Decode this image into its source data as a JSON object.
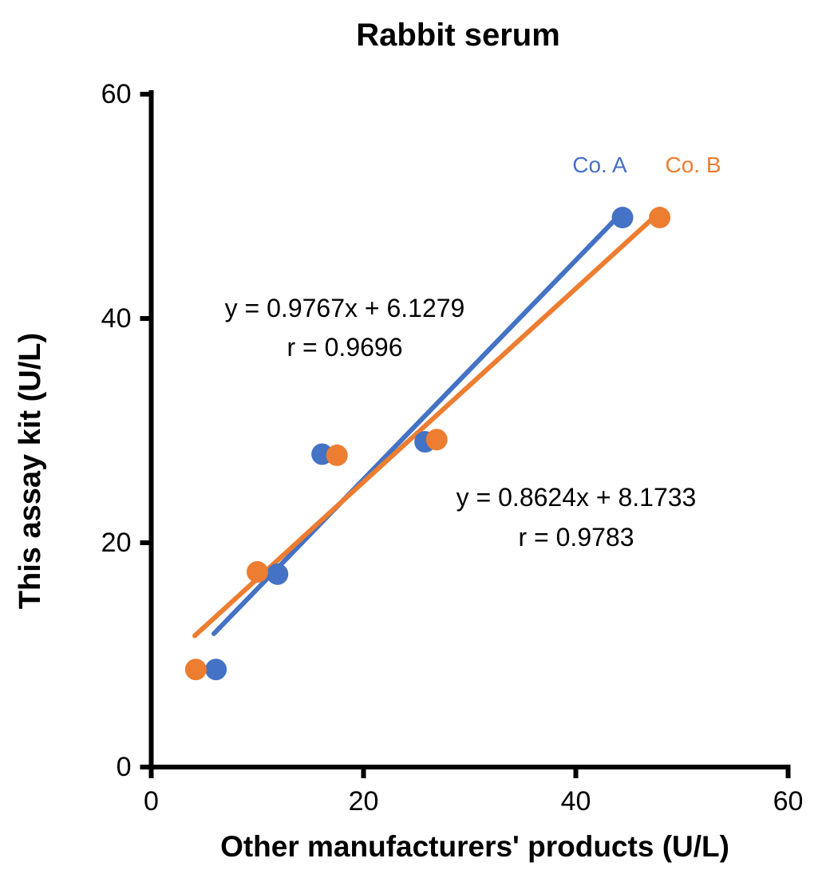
{
  "figure": {
    "title": "Rabbit serum",
    "background": "#ffffff"
  },
  "axes": {
    "x_label": "Other manufacturers' products (U/L)",
    "y_label": "This assay kit (U/L)"
  },
  "legend": {
    "series_a_label": "Co. A",
    "series_b_label": "Co. B"
  },
  "annotations": {
    "series_a": {
      "equation": "y = 0.9767x + 6.1279",
      "r": "r = 0.9696"
    },
    "series_b": {
      "equation": "y = 0.8624x + 8.1733",
      "r": "r = 0.9783"
    }
  },
  "colors": {
    "series_a": "#4472C4",
    "series_b": "#ED7D31",
    "axis": "#000000",
    "text": "#000000"
  },
  "chart_data": {
    "type": "scatter",
    "title": "Rabbit serum",
    "xlabel": "Other manufacturers' products (U/L)",
    "ylabel": "This assay kit (U/L)",
    "xlim": [
      0,
      60
    ],
    "ylim": [
      0,
      60
    ],
    "x_ticks": [
      0,
      20,
      40,
      60
    ],
    "y_ticks": [
      0,
      20,
      40,
      60
    ],
    "grid": false,
    "legend_position": "inside top-right",
    "series": [
      {
        "name": "Co. A",
        "color": "#4472C4",
        "points": [
          [
            6.1,
            8.7
          ],
          [
            11.9,
            17.2
          ],
          [
            16.1,
            27.9
          ],
          [
            25.8,
            29.0
          ],
          [
            44.4,
            49.0
          ]
        ],
        "trendline": {
          "slope": 0.9767,
          "intercept": 6.1279,
          "r": 0.9696,
          "x_range": [
            5.9,
            44.4
          ]
        }
      },
      {
        "name": "Co. B",
        "color": "#ED7D31",
        "points": [
          [
            4.2,
            8.7
          ],
          [
            10.0,
            17.4
          ],
          [
            17.5,
            27.8
          ],
          [
            26.9,
            29.2
          ],
          [
            47.9,
            49.0
          ]
        ],
        "trendline": {
          "slope": 0.8624,
          "intercept": 8.1733,
          "r": 0.9783,
          "x_range": [
            4.1,
            47.9
          ]
        }
      }
    ]
  }
}
